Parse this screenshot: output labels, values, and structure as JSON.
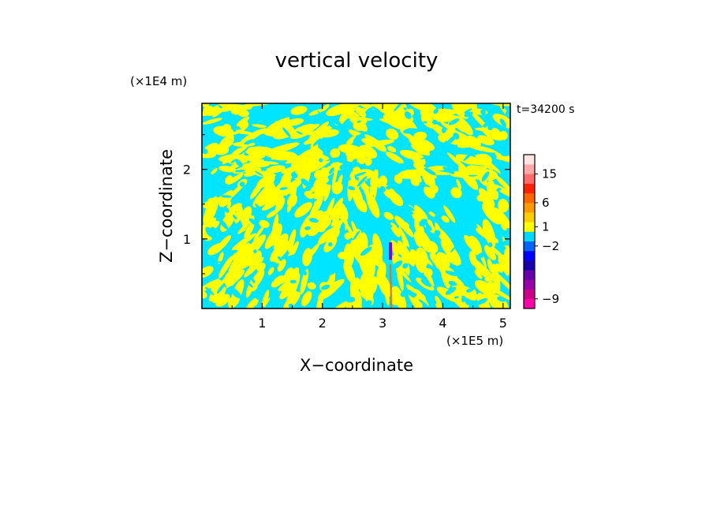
{
  "chart_data": {
    "type": "heatmap",
    "title": "vertical velocity",
    "xlabel": "X−coordinate",
    "ylabel": "Z−coordinate",
    "x_unit": "(×1E5 m)",
    "y_unit": "(×1E4 m)",
    "time_label": "t=34200 s",
    "xlim": [
      0,
      5.12
    ],
    "ylim": [
      0,
      2.95
    ],
    "x_ticks": [
      1,
      2,
      3,
      4,
      5
    ],
    "x_tick_labels": [
      "1",
      "2",
      "3",
      "4",
      "5"
    ],
    "y_ticks": [
      1,
      2
    ],
    "y_tick_labels": [
      "1",
      "2"
    ],
    "colorbar": {
      "colors": [
        "#ff00aa",
        "#cc0088",
        "#9900aa",
        "#6600aa",
        "#1a00aa",
        "#0000ff",
        "#0066ff",
        "#00d8ff",
        "#ffff00",
        "#ffcc00",
        "#ff9900",
        "#ff6600",
        "#ff2200",
        "#ff6a6a",
        "#ffa8a8",
        "#ffe4e4"
      ],
      "labels": [
        {
          "text": "−9",
          "at_segment": 1
        },
        {
          "text": "−2",
          "at_segment": 6.5
        },
        {
          "text": "1",
          "at_segment": 8.5
        },
        {
          "text": "6",
          "at_segment": 11
        },
        {
          "text": "15",
          "at_segment": 14
        }
      ]
    },
    "field_colors": {
      "positive": "#ffff00",
      "negative": "#00e5ff",
      "updraft_core": "#8800cc",
      "updraft_edge": "#ff6600"
    },
    "updraft_column": {
      "x": 3.13,
      "z_range": [
        0.0,
        0.95
      ]
    },
    "grid": false
  }
}
